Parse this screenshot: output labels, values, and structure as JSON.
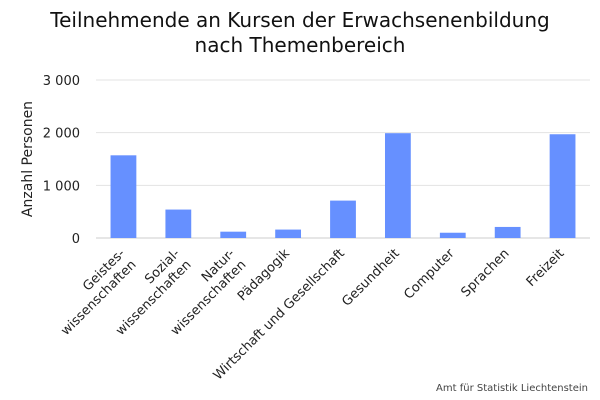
{
  "chart_data": {
    "type": "bar",
    "title": [
      "Teilnehmende an Kursen der Erwachsenenbildung",
      "nach Themenbereich"
    ],
    "xlabel": "",
    "ylabel": "Anzahl Personen",
    "categories": [
      [
        "Geistes-",
        "wissenschaften"
      ],
      [
        "Sozial-",
        "wissenschaften"
      ],
      [
        "Natur-",
        "wissenschaften"
      ],
      [
        "Pädagogik"
      ],
      [
        "Wirtschaft und Gesellschaft"
      ],
      [
        "Gesundheit"
      ],
      [
        "Computer"
      ],
      [
        "Sprachen"
      ],
      [
        "Freizeit"
      ]
    ],
    "values": [
      1570,
      540,
      120,
      160,
      710,
      1990,
      100,
      210,
      1970
    ],
    "ylim": [
      0,
      3000
    ],
    "yticks": [
      0,
      1000,
      2000,
      3000
    ],
    "ytick_labels": [
      "0",
      "1 000",
      "2 000",
      "3 000"
    ],
    "grid": true,
    "bar_color": "#6690ff"
  },
  "source": "Amt für Statistik Liechtenstein"
}
